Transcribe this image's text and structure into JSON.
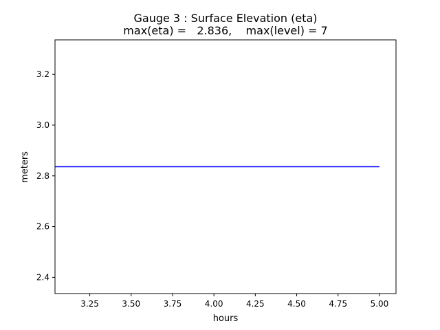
{
  "chart_data": {
    "type": "line",
    "title": "Gauge 3 : Surface Elevation (eta)",
    "subtitle": "max(eta) =   2.836,    max(level) = 7",
    "xlabel": "hours",
    "ylabel": "meters",
    "xlim": [
      3.04,
      5.1
    ],
    "ylim": [
      2.336,
      3.336
    ],
    "x_ticks": [
      "3.25",
      "3.50",
      "3.75",
      "4.00",
      "4.25",
      "4.50",
      "4.75",
      "5.00"
    ],
    "y_ticks": [
      "2.4",
      "2.6",
      "2.8",
      "3.0",
      "3.2"
    ],
    "grid": false,
    "series": [
      {
        "color": "#0000ff",
        "x": [
          3.04,
          3.5,
          4.0,
          4.5,
          5.0
        ],
        "y": [
          2.836,
          2.836,
          2.836,
          2.836,
          2.836
        ]
      }
    ]
  }
}
